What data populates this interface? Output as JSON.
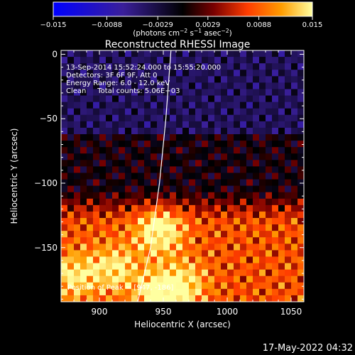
{
  "chart_data": {
    "type": "heatmap",
    "title": "Reconstructed RHESSI Image",
    "xlabel": "Heliocentric X (arcsec)",
    "ylabel": "Heliocentric Y (arcsec)",
    "xlim": [
      870,
      1060
    ],
    "ylim": [
      -192,
      3
    ],
    "x_ticks": [
      900,
      950,
      1000,
      1050
    ],
    "y_ticks": [
      0,
      -50,
      -100,
      -150
    ],
    "colorbar": {
      "range": [
        -0.015,
        0.015
      ],
      "ticks": [
        -0.015,
        -0.0088,
        -0.0029,
        0.0029,
        0.0088,
        0.015
      ],
      "tick_labels": [
        "−0.015",
        "−0.0088",
        "−0.0029",
        "0.0029",
        "0.0088",
        "0.015"
      ],
      "unit_prefix": "(photons cm",
      "unit_sup1": "−2",
      "unit_mid": " s",
      "unit_sup2": "−1",
      "unit_suffix": " asec",
      "unit_sup3": "−2",
      "unit_close": ")",
      "colors": [
        "#0000ff",
        "#3a1f9a",
        "#000000",
        "#7a0000",
        "#ff3d00",
        "#ff9c00",
        "#ffffa0"
      ]
    },
    "annotations": [
      "13-Sep-2014 15:52:24.000 to 15:55:20.000",
      "Detectors: 3F 6F 9F, Att 0",
      "Energy Range: 6.0 - 12.0 keV",
      "Clean     Total counts: 5.06E+03"
    ],
    "peak_label": "Position of Peak = [947, -186]",
    "peak_position": [
      947,
      -186
    ],
    "limb_curve": [
      [
        930,
        -192
      ],
      [
        940,
        -150
      ],
      [
        947,
        -100
      ],
      [
        952,
        -50
      ],
      [
        956,
        3
      ]
    ],
    "value_bands": [
      {
        "y_range": [
          3,
          -60
        ],
        "level": -0.004
      },
      {
        "y_range": [
          -60,
          -120
        ],
        "level": 0.0
      },
      {
        "y_range": [
          -120,
          -192
        ],
        "level": 0.008
      }
    ],
    "hotspots": [
      {
        "x": 947,
        "y": -137,
        "level": 0.015
      },
      {
        "x": 880,
        "y": -172,
        "level": 0.013
      },
      {
        "x": 912,
        "y": -166,
        "level": 0.013
      },
      {
        "x": 947,
        "y": -186,
        "level": 0.015
      },
      {
        "x": 967,
        "y": -178,
        "level": 0.012
      }
    ]
  },
  "footer": {
    "timestamp": "17-May-2022 04:32"
  }
}
